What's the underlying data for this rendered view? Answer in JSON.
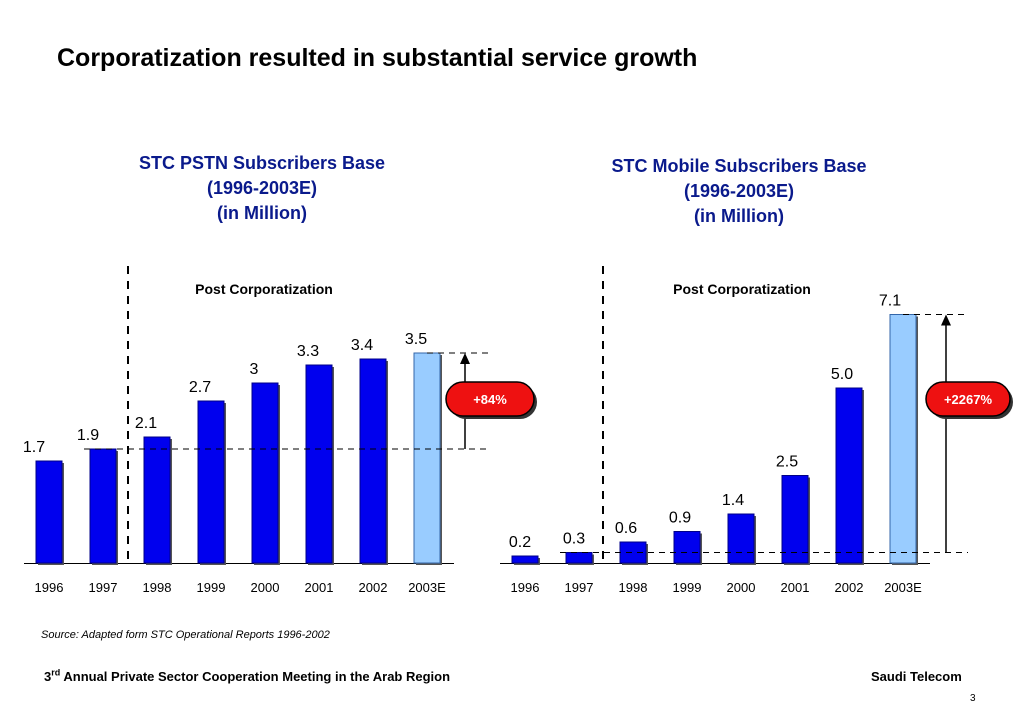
{
  "slide": {
    "title": "Corporatization resulted in substantial service growth",
    "source": "Source:   Adapted form STC Operational Reports 1996-2002",
    "footer_left_prefix": "3",
    "footer_left_sup": "rd",
    "footer_left_rest": " Annual Private Sector Cooperation Meeting in the Arab Region",
    "footer_right": "Saudi Telecom",
    "page_number": "3"
  },
  "colors": {
    "bar_actual": "#0000ee",
    "bar_estimate": "#99ccff",
    "badge_fill": "#ee1111",
    "title_blue": "#0a1a8c"
  },
  "chart_data": [
    {
      "type": "bar",
      "title_lines": [
        "STC PSTN Subscribers Base",
        "(1996-2003E)",
        "(in Million)"
      ],
      "categories": [
        "1996",
        "1997",
        "1998",
        "1999",
        "2000",
        "2001",
        "2002",
        "2003E"
      ],
      "values": [
        1.7,
        1.9,
        2.1,
        2.7,
        3,
        3.3,
        3.4,
        3.5
      ],
      "value_labels": [
        "1.7",
        "1.9",
        "2.1",
        "2.7",
        "3",
        "3.3",
        "3.4",
        "3.5"
      ],
      "estimate_index": 7,
      "annotation_label": "Post Corporatization",
      "growth_label": "+84%",
      "growth_from_index": 1,
      "growth_to_index": 7
    },
    {
      "type": "bar",
      "title_lines": [
        "STC Mobile Subscribers Base",
        "(1996-2003E)",
        "(in Million)"
      ],
      "categories": [
        "1996",
        "1997",
        "1998",
        "1999",
        "2000",
        "2001",
        "2002",
        "2003E"
      ],
      "values": [
        0.2,
        0.3,
        0.6,
        0.9,
        1.4,
        2.5,
        5.0,
        7.1
      ],
      "value_labels": [
        "0.2",
        "0.3",
        "0.6",
        "0.9",
        "1.4",
        "2.5",
        "5.0",
        "7.1"
      ],
      "estimate_index": 7,
      "annotation_label": "Post Corporatization",
      "growth_label": "+2267%",
      "growth_from_index": 1,
      "growth_to_index": 7
    }
  ]
}
